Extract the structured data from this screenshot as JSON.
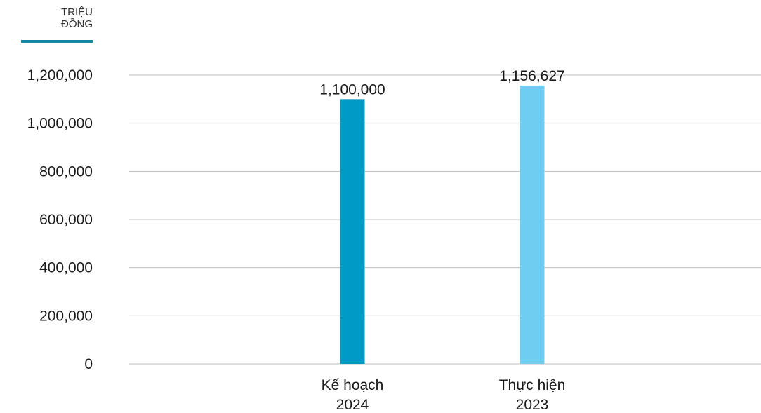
{
  "unit_label": {
    "line1": "TRIỆU",
    "line2": "ĐỒNG"
  },
  "colors": {
    "unit_rule": "#1a8aa3",
    "grid": "#bdbdbd"
  },
  "chart_data": {
    "type": "bar",
    "title": "",
    "xlabel": "",
    "ylabel": "",
    "ylim": [
      0,
      1200000
    ],
    "yticks": [
      0,
      200000,
      400000,
      600000,
      800000,
      1000000,
      1200000
    ],
    "ytick_labels": [
      "0",
      "200,000",
      "400,000",
      "600,000",
      "800,000",
      "1,000,000",
      "1,200,000"
    ],
    "categories": [
      {
        "line1": "Kế hoạch",
        "line2": "2024"
      },
      {
        "line1": "Thực hiện",
        "line2": "2023"
      }
    ],
    "values": [
      1100000,
      1156627
    ],
    "value_labels": [
      "1,100,000",
      "1,156,627"
    ],
    "bar_colors": [
      "#009bc4",
      "#6fcdf2"
    ],
    "grid": true,
    "legend": false
  }
}
